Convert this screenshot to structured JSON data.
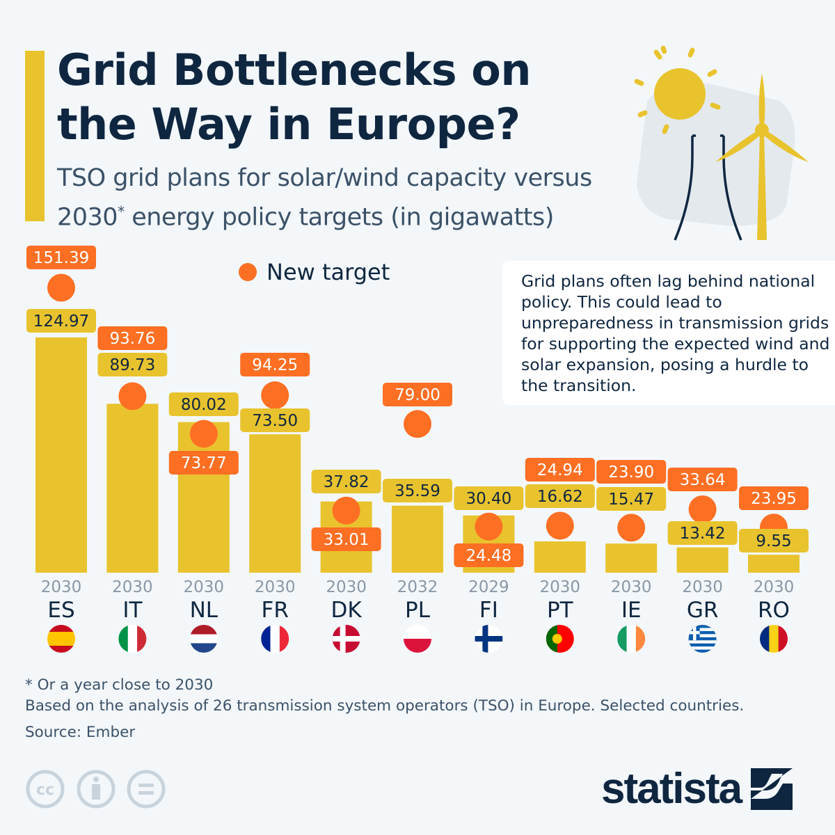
{
  "header": {
    "title_line1": "Grid Bottlenecks on",
    "title_line2": "the Way in Europe?",
    "subtitle_line1": "TSO grid plans for solar/wind capacity versus",
    "subtitle_line2_pre": "2030",
    "subtitle_line2_sup": "*",
    "subtitle_line2_post": " energy policy targets (in gigawatts)"
  },
  "note": "Grid plans often lag behind national policy. This could lead to unpreparedness in transmission grids for supporting the expected wind and solar expansion, posing a hurdle to the transition.",
  "chart_data": {
    "type": "bar",
    "categories": [
      "ES",
      "IT",
      "NL",
      "FR",
      "DK",
      "PL",
      "FI",
      "PT",
      "IE",
      "GR",
      "RO"
    ],
    "years": [
      "2030",
      "2030",
      "2030",
      "2030",
      "2030",
      "2032",
      "2029",
      "2030",
      "2030",
      "2030",
      "2030"
    ],
    "series": [
      {
        "values": [
          124.97,
          89.73,
          80.02,
          73.5,
          37.82,
          35.59,
          30.4,
          16.62,
          15.47,
          13.42,
          9.55
        ],
        "color": "#e8c32e"
      },
      {
        "name": "New target",
        "marker": "dot",
        "values": [
          151.39,
          93.76,
          73.77,
          94.25,
          33.01,
          79.0,
          24.48,
          24.94,
          23.9,
          33.64,
          23.95
        ],
        "color": "#fd6f23"
      }
    ],
    "ylim": [
      0,
      155
    ],
    "grid": false,
    "legend": "top-center"
  },
  "flags": [
    "spain-flag",
    "italy-flag",
    "netherlands-flag",
    "france-flag",
    "denmark-flag",
    "poland-flag",
    "finland-flag",
    "portugal-flag",
    "ireland-flag",
    "greece-flag",
    "romania-flag"
  ],
  "footer": {
    "footnote": "* Or a year close to 2030",
    "basis": "Based on the analysis of 26 transmission system operators (TSO) in Europe. Selected countries.",
    "source": "Source: Ember"
  },
  "brand": {
    "logo": "statista"
  }
}
